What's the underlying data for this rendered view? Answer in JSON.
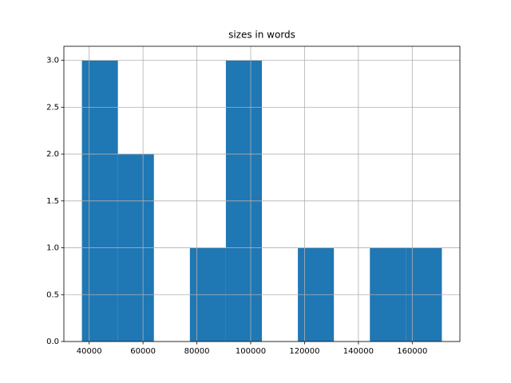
{
  "chart_data": {
    "type": "histogram",
    "title": "sizes in words",
    "bins": [
      37300,
      50670,
      64040,
      77410,
      90780,
      104150,
      117520,
      130890,
      144260,
      157630,
      171000
    ],
    "counts": [
      3,
      2,
      0,
      1,
      3,
      0,
      1,
      0,
      1,
      1
    ],
    "color": "#1f77b4",
    "xlim": [
      30600,
      177700
    ],
    "xticks": [
      40000,
      60000,
      80000,
      100000,
      120000,
      140000,
      160000
    ],
    "ylim": [
      0,
      3.15
    ],
    "yticks": [
      {
        "value": 0,
        "label": "0.0"
      },
      0.5,
      {
        "value": 1,
        "label": "1.0"
      },
      1.5,
      {
        "value": 2,
        "label": "2.0"
      },
      2.5,
      {
        "value": 3,
        "label": "3.0"
      }
    ],
    "grid": true
  }
}
